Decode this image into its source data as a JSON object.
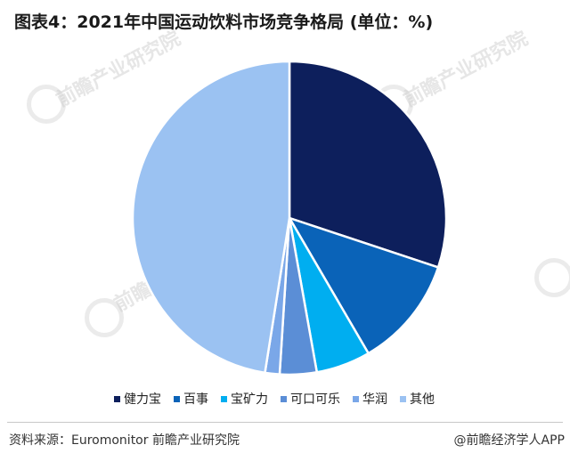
{
  "title": "图表4：2021年中国运动饮料市场竞争格局 (单位：%)",
  "watermark_text": "前瞻产业研究院",
  "chart_data": {
    "type": "pie",
    "title": "图表4：2021年中国运动饮料市场竞争格局 (单位：%)",
    "slices": [
      {
        "label": "健力宝",
        "value": 30.1,
        "color": "#0d1f5c"
      },
      {
        "label": "百事",
        "value": 11.5,
        "color": "#0a63b8"
      },
      {
        "label": "宝矿力",
        "value": 5.6,
        "color": "#00aef0"
      },
      {
        "label": "可口可乐",
        "value": 3.8,
        "color": "#5b8ed6"
      },
      {
        "label": "华润",
        "value": 1.5,
        "color": "#7aa7e8"
      },
      {
        "label": "其他",
        "value": 47.5,
        "color": "#9bc2f2"
      }
    ],
    "start": "12 o'clock",
    "direction": "clockwise",
    "legend_position": "bottom"
  },
  "legend": [
    {
      "label": "健力宝",
      "color": "#0d1f5c"
    },
    {
      "label": "百事",
      "color": "#0a63b8"
    },
    {
      "label": "宝矿力",
      "color": "#00aef0"
    },
    {
      "label": "可口可乐",
      "color": "#5b8ed6"
    },
    {
      "label": "华润",
      "color": "#7aa7e8"
    },
    {
      "label": "其他",
      "color": "#9bc2f2"
    }
  ],
  "footer": {
    "source": "资料来源：Euromonitor 前瞻产业研究院",
    "brand": "@前瞻经济学人APP"
  }
}
